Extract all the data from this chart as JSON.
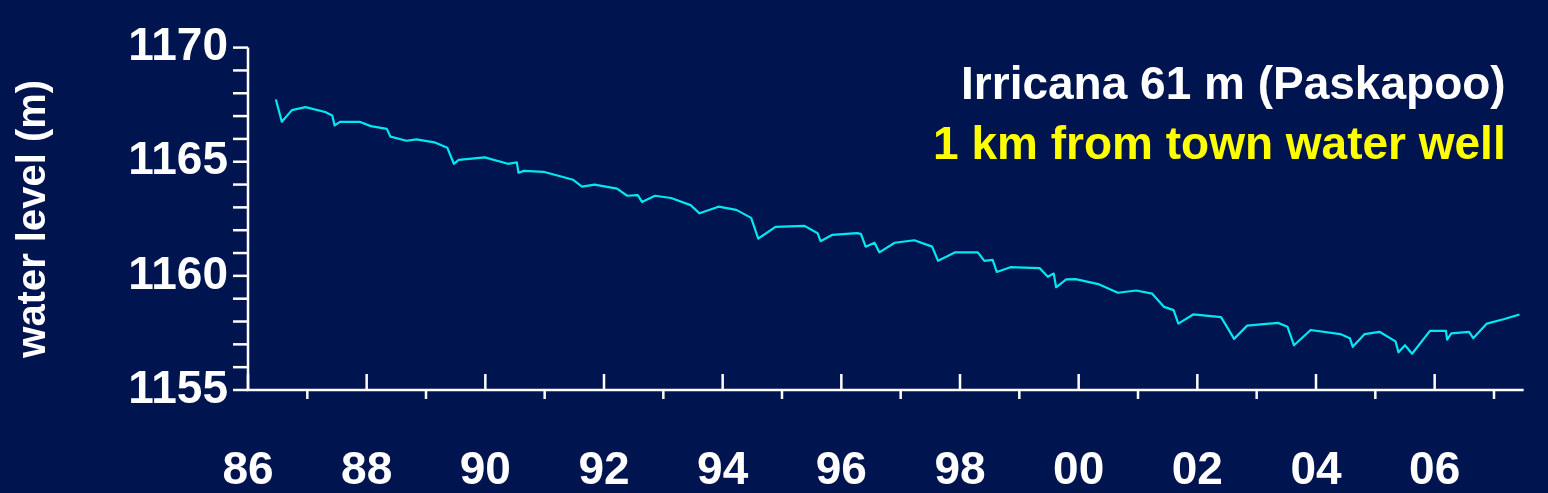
{
  "chart_data": {
    "type": "line",
    "ylabel": "water level (m)",
    "annotations": [
      "Irricana 61 m (Paskapoo)",
      "1 km from town water well"
    ],
    "xlim": [
      1986,
      2007.5
    ],
    "xticks": [
      {
        "value": 1986,
        "label": "86"
      },
      {
        "value": 1987,
        "label": null
      },
      {
        "value": 1988,
        "label": "88"
      },
      {
        "value": 1989,
        "label": null
      },
      {
        "value": 1990,
        "label": "90"
      },
      {
        "value": 1991,
        "label": null
      },
      {
        "value": 1992,
        "label": "92"
      },
      {
        "value": 1993,
        "label": null
      },
      {
        "value": 1994,
        "label": "94"
      },
      {
        "value": 1995,
        "label": null
      },
      {
        "value": 1996,
        "label": "96"
      },
      {
        "value": 1997,
        "label": null
      },
      {
        "value": 1998,
        "label": "98"
      },
      {
        "value": 1999,
        "label": null
      },
      {
        "value": 2000,
        "label": "00"
      },
      {
        "value": 2001,
        "label": null
      },
      {
        "value": 2002,
        "label": "02"
      },
      {
        "value": 2003,
        "label": null
      },
      {
        "value": 2004,
        "label": "04"
      },
      {
        "value": 2005,
        "label": null
      },
      {
        "value": 2006,
        "label": "06"
      },
      {
        "value": 2007,
        "label": null
      }
    ],
    "ylim": [
      1155,
      1170
    ],
    "yticks": [
      1155,
      {
        "value": 1156,
        "label": null
      },
      {
        "value": 1157,
        "label": null
      },
      {
        "value": 1158,
        "label": null
      },
      {
        "value": 1159,
        "label": null
      },
      1160,
      {
        "value": 1161,
        "label": null
      },
      {
        "value": 1162,
        "label": null
      },
      {
        "value": 1163,
        "label": null
      },
      {
        "value": 1164,
        "label": null
      },
      1165,
      {
        "value": 1166,
        "label": null
      },
      {
        "value": 1167,
        "label": null
      },
      {
        "value": 1168,
        "label": null
      },
      {
        "value": 1169,
        "label": null
      },
      1170
    ],
    "grid": false,
    "legend": false,
    "marker": "none",
    "line_style": "solid",
    "series": [
      {
        "color": "#00e8f0",
        "x": [
          1986.47,
          1986.57,
          1986.74,
          1986.97,
          1987.3,
          1987.42,
          1987.46,
          1987.55,
          1987.88,
          1988.07,
          1988.34,
          1988.4,
          1988.67,
          1988.84,
          1989.14,
          1989.36,
          1989.47,
          1989.55,
          1989.99,
          1990.38,
          1990.53,
          1990.56,
          1990.65,
          1990.98,
          1991.48,
          1991.63,
          1991.84,
          1992.22,
          1992.39,
          1992.57,
          1992.64,
          1992.86,
          1993.13,
          1993.46,
          1993.61,
          1993.93,
          1994.23,
          1994.48,
          1994.6,
          1994.89,
          1995.38,
          1995.6,
          1995.65,
          1995.85,
          1996.26,
          1996.33,
          1996.41,
          1996.56,
          1996.64,
          1996.9,
          1997.23,
          1997.53,
          1997.63,
          1997.92,
          1998.3,
          1998.41,
          1998.55,
          1998.62,
          1998.85,
          1999.34,
          1999.48,
          1999.58,
          1999.62,
          1999.79,
          1999.95,
          2000.33,
          2000.66,
          2000.97,
          2001.24,
          2001.44,
          2001.6,
          2001.68,
          2001.93,
          2002.4,
          2002.62,
          2002.84,
          2003.36,
          2003.52,
          2003.63,
          2003.91,
          2004.41,
          2004.57,
          2004.62,
          2004.82,
          2005.07,
          2005.34,
          2005.39,
          2005.5,
          2005.62,
          2005.92,
          2006.19,
          2006.21,
          2006.28,
          2006.58,
          2006.65,
          2006.88,
          2007.16,
          2007.43
        ],
        "values": [
          1167.73,
          1166.75,
          1167.26,
          1167.39,
          1167.18,
          1167.03,
          1166.59,
          1166.75,
          1166.75,
          1166.56,
          1166.44,
          1166.1,
          1165.92,
          1165.98,
          1165.85,
          1165.61,
          1164.91,
          1165.08,
          1165.19,
          1164.91,
          1164.97,
          1164.52,
          1164.6,
          1164.56,
          1164.21,
          1163.91,
          1164.0,
          1163.82,
          1163.51,
          1163.54,
          1163.24,
          1163.51,
          1163.41,
          1163.1,
          1162.74,
          1163.03,
          1162.89,
          1162.54,
          1161.63,
          1162.15,
          1162.19,
          1161.87,
          1161.52,
          1161.8,
          1161.87,
          1161.84,
          1161.28,
          1161.45,
          1161.03,
          1161.45,
          1161.56,
          1161.28,
          1160.66,
          1161.03,
          1161.03,
          1160.66,
          1160.7,
          1160.17,
          1160.38,
          1160.34,
          1159.96,
          1160.1,
          1159.5,
          1159.85,
          1159.86,
          1159.64,
          1159.26,
          1159.36,
          1159.22,
          1158.64,
          1158.5,
          1157.91,
          1158.31,
          1158.19,
          1157.24,
          1157.82,
          1157.94,
          1157.77,
          1156.96,
          1157.63,
          1157.45,
          1157.27,
          1156.89,
          1157.45,
          1157.55,
          1157.13,
          1156.65,
          1156.96,
          1156.59,
          1157.59,
          1157.59,
          1157.21,
          1157.48,
          1157.55,
          1157.27,
          1157.91,
          1158.1,
          1158.31
        ]
      }
    ]
  }
}
